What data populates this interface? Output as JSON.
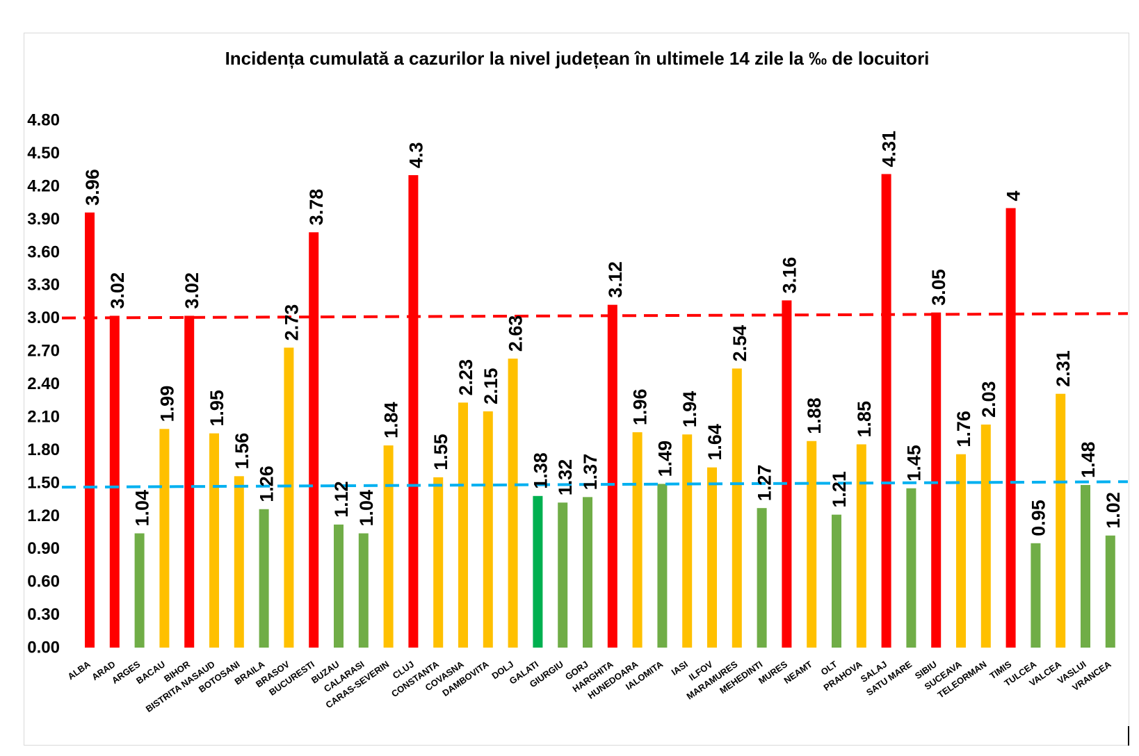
{
  "chart_data": {
    "type": "bar",
    "title": "Incidența cumulată a cazurilor la nivel județean în ultimele 14 zile la ‰ de locuitori",
    "categories": [
      "ALBA",
      "ARAD",
      "ARGES",
      "BACAU",
      "BIHOR",
      "BISTRITA NASAUD",
      "BOTOSANI",
      "BRAILA",
      "BRASOV",
      "BUCURESTI",
      "BUZAU",
      "CALARASI",
      "CARAS-SEVERIN",
      "CLUJ",
      "CONSTANTA",
      "COVASNA",
      "DAMBOVITA",
      "DOLJ",
      "GALATI",
      "GIURGIU",
      "GORJ",
      "HARGHITA",
      "HUNEDOARA",
      "IALOMITA",
      "IASI",
      "ILFOV",
      "MARAMURES",
      "MEHEDINTI",
      "MURES",
      "NEAMT",
      "OLT",
      "PRAHOVA",
      "SALAJ",
      "SATU MARE",
      "SIBIU",
      "SUCEAVA",
      "TELEORMAN",
      "TIMIS",
      "TULCEA",
      "VALCEA",
      "VASLUI",
      "VRANCEA"
    ],
    "values": [
      3.96,
      3.02,
      1.04,
      1.99,
      3.02,
      1.95,
      1.56,
      1.26,
      2.73,
      3.78,
      1.12,
      1.04,
      1.84,
      4.3,
      1.55,
      2.23,
      2.15,
      2.63,
      1.38,
      1.32,
      1.37,
      3.12,
      1.96,
      1.49,
      1.94,
      1.64,
      2.54,
      1.27,
      3.16,
      1.88,
      1.21,
      1.85,
      4.31,
      1.45,
      3.05,
      1.76,
      2.03,
      4,
      0.95,
      2.31,
      1.48,
      1.02
    ],
    "colors": [
      "#FF0000",
      "#FF0000",
      "#70AD47",
      "#FFC000",
      "#FF0000",
      "#FFC000",
      "#FFC000",
      "#70AD47",
      "#FFC000",
      "#FF0000",
      "#70AD47",
      "#70AD47",
      "#FFC000",
      "#FF0000",
      "#FFC000",
      "#FFC000",
      "#FFC000",
      "#FFC000",
      "#00B050",
      "#70AD47",
      "#70AD47",
      "#FF0000",
      "#FFC000",
      "#70AD47",
      "#FFC000",
      "#FFC000",
      "#FFC000",
      "#70AD47",
      "#FF0000",
      "#FFC000",
      "#70AD47",
      "#FFC000",
      "#FF0000",
      "#70AD47",
      "#FF0000",
      "#FFC000",
      "#FFC000",
      "#FF0000",
      "#70AD47",
      "#FFC000",
      "#70AD47",
      "#70AD47"
    ],
    "ylim": [
      0,
      4.8
    ],
    "y_tick_labels": [
      "0.00",
      "0.30",
      "0.60",
      "0.90",
      "1.20",
      "1.50",
      "1.80",
      "2.10",
      "2.40",
      "2.70",
      "3.00",
      "3.30",
      "3.60",
      "3.90",
      "4.20",
      "4.50",
      "4.80"
    ],
    "reference_lines": [
      {
        "color": "#FF0000",
        "y_left": 3.0,
        "y_right": 3.04
      },
      {
        "color": "#00B0F0",
        "y_left": 1.46,
        "y_right": 1.51
      }
    ],
    "grid": false
  }
}
